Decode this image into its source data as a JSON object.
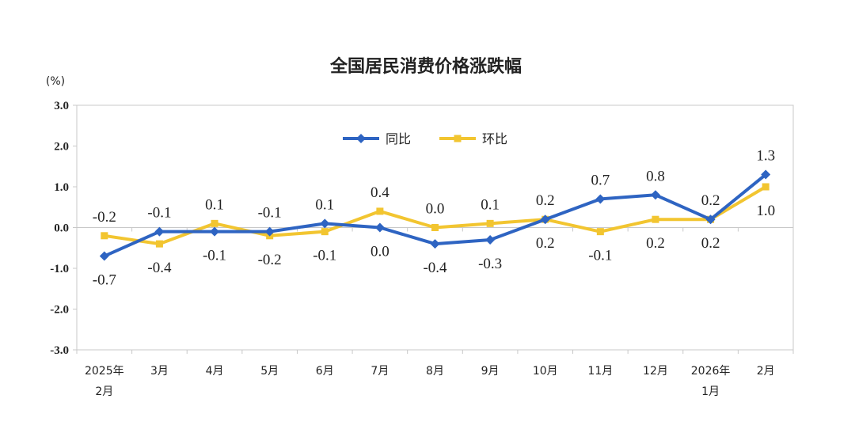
{
  "chart_data": {
    "type": "line",
    "title": "全国居民消费价格涨跌幅",
    "unit": "(%)",
    "categories": [
      [
        "2025年",
        "2月"
      ],
      [
        "3月"
      ],
      [
        "4月"
      ],
      [
        "5月"
      ],
      [
        "6月"
      ],
      [
        "7月"
      ],
      [
        "8月"
      ],
      [
        "9月"
      ],
      [
        "10月"
      ],
      [
        "11月"
      ],
      [
        "12月"
      ],
      [
        "2026年",
        "1月"
      ],
      [
        "2月"
      ]
    ],
    "ylim": [
      -3.0,
      3.0
    ],
    "yticks": [
      "3.0",
      "2.0",
      "1.0",
      "0.0",
      "-1.0",
      "-2.0",
      "-3.0"
    ],
    "ytick_values": [
      3,
      2,
      1,
      0,
      -1,
      -2,
      -3
    ],
    "legend_position": "top-center",
    "series": [
      {
        "name": "同比",
        "color": "#2e64c2",
        "marker": "diamond",
        "values": [
          -0.7,
          -0.1,
          -0.1,
          -0.1,
          0.1,
          0.0,
          -0.4,
          -0.3,
          0.2,
          0.7,
          0.8,
          0.2,
          1.3
        ],
        "labels": [
          "-0.7",
          "-0.1",
          "-0.1",
          "-0.1",
          "0.1",
          "0.0",
          "-0.4",
          "-0.3",
          "0.2",
          "0.7",
          "0.8",
          "0.2",
          "1.3"
        ]
      },
      {
        "name": "环比",
        "color": "#f2c530",
        "marker": "square",
        "values": [
          -0.2,
          -0.4,
          0.1,
          -0.2,
          -0.1,
          0.4,
          0.0,
          0.1,
          0.2,
          -0.1,
          0.2,
          0.2,
          1.0
        ],
        "labels": [
          "-0.2",
          "-0.4",
          "0.1",
          "-0.2",
          "-0.1",
          "0.4",
          "0.0",
          "0.1",
          "0.2",
          "-0.1",
          "0.2",
          "0.2",
          "1.0"
        ]
      }
    ]
  }
}
